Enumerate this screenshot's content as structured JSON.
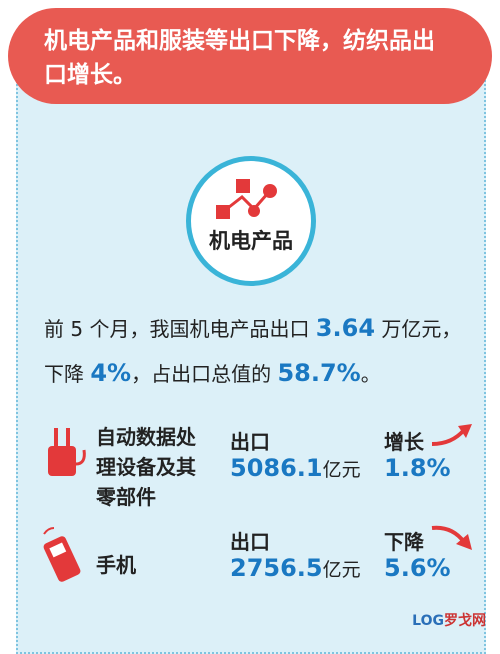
{
  "header": {
    "title": "机电产品和服装等出口下降，纺织品出口增长。"
  },
  "badge": {
    "label": "机电产品"
  },
  "summary": {
    "parts": [
      "前 5 个月，我国机电产品出口 ",
      "3.64",
      " 万亿元，",
      "下降 ",
      "4%",
      "，占出口总值的 ",
      "58.7%",
      "。"
    ]
  },
  "items": [
    {
      "name": "自动数据处理设备及其零部件",
      "export_label": "出口",
      "value": "5086.1",
      "unit": "亿元",
      "change_label": "增长",
      "change": "1.8%"
    },
    {
      "name": "手机",
      "export_label": "出口",
      "value": "2756.5",
      "unit": "亿元",
      "change_label": "下降",
      "change": "5.6%"
    }
  ],
  "watermark": {
    "logo": "LOG",
    "text": "罗戈网"
  }
}
